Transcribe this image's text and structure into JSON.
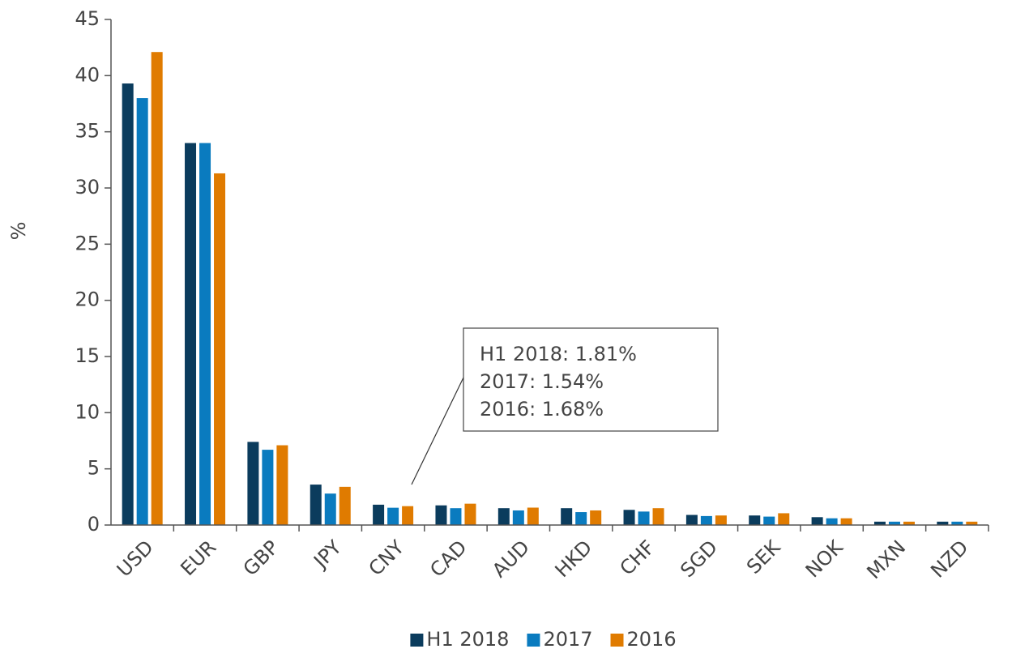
{
  "chart_data": {
    "type": "bar",
    "y_label": "%",
    "categories": [
      "USD",
      "EUR",
      "GBP",
      "JPY",
      "CNY",
      "CAD",
      "AUD",
      "HKD",
      "CHF",
      "SGD",
      "SEK",
      "NOK",
      "MXN",
      "NZD"
    ],
    "series": [
      {
        "name": "H1 2018",
        "color": "#0b3c5d",
        "values": [
          39.3,
          34.0,
          7.4,
          3.6,
          1.81,
          1.75,
          1.5,
          1.5,
          1.35,
          0.9,
          0.85,
          0.7,
          0.3,
          0.3
        ]
      },
      {
        "name": "2017",
        "color": "#0a7bbf",
        "values": [
          38.0,
          34.0,
          6.7,
          2.8,
          1.54,
          1.5,
          1.3,
          1.15,
          1.2,
          0.8,
          0.75,
          0.6,
          0.3,
          0.3
        ]
      },
      {
        "name": "2016",
        "color": "#e07b00",
        "values": [
          42.1,
          31.3,
          7.1,
          3.4,
          1.68,
          1.9,
          1.55,
          1.3,
          1.5,
          0.85,
          1.05,
          0.6,
          0.3,
          0.3
        ]
      }
    ],
    "annotation": [
      "H1 2018: 1.81%",
      "2017: 1.54%",
      "2016: 1.68%"
    ],
    "ylim": [
      0,
      45
    ],
    "yticks": [
      0,
      5,
      10,
      15,
      20,
      25,
      30,
      35,
      40,
      45
    ],
    "grid": false,
    "legend": "bottom"
  }
}
